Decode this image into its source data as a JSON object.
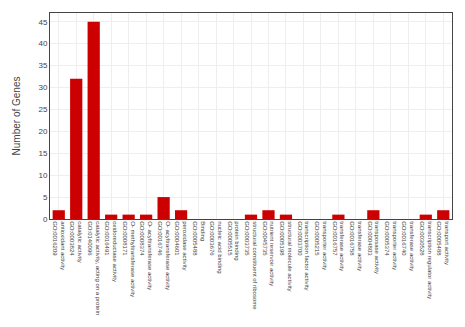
{
  "chart_data": {
    "type": "bar",
    "categories": [
      "antioxidant\nactivity\nGO:0016209",
      "catalytic\nactivity\nGO:0003824",
      "catalytic\nactivity, acting\non a protein\nGO:0140096",
      "oxidoreductase\nactivity\nGO:0016491",
      "O-\nmethyltransferase\nactivity\nGO:0008171",
      "O-\nacyltransferase\nactivity\nGO:0008374",
      "O-\nacyltransferase\nactivity\nGO:0016746",
      "peroxidase\nactivity\nGO:0004601",
      "Binding\nGO:0005488",
      "nucleic acid\nbinding\nGO:0003676",
      "protein\nbinding\nGO:0005515",
      "structural\nconstituent\nof ribosome\nGO:0003735",
      "nutrient\nreservoir\nactivity\nGO:0045735",
      "structural\nmolecule\nactivity\nGO:0005198",
      "transcription\nfactor\nactivity\nGO:0003700",
      "transporter\nactivity\nGO:0005215",
      "transferase\nactivity\nGO:0016757",
      "transferase\nactivity\nGO:0016758",
      "transposase\nactivity\nGO:0004803",
      "transporter\nactivity\nGO:0005374",
      "transferase\nactivity\nGO:0016740",
      "transcription\nregulator\nactivity\nGO:0030528",
      "transport\nactivity\nGO:0005488"
    ],
    "values": [
      2,
      32,
      45,
      1,
      1,
      1,
      5,
      2,
      0,
      0,
      0,
      1,
      2,
      1,
      0,
      0,
      1,
      0,
      2,
      0,
      0,
      1,
      2
    ],
    "color": "#cc0000",
    "ylabel": "Number of Genes",
    "ylim": [
      0,
      47
    ],
    "yticks": [
      0,
      5,
      10,
      15,
      20,
      25,
      30,
      35,
      40,
      45
    ],
    "grid": true
  }
}
